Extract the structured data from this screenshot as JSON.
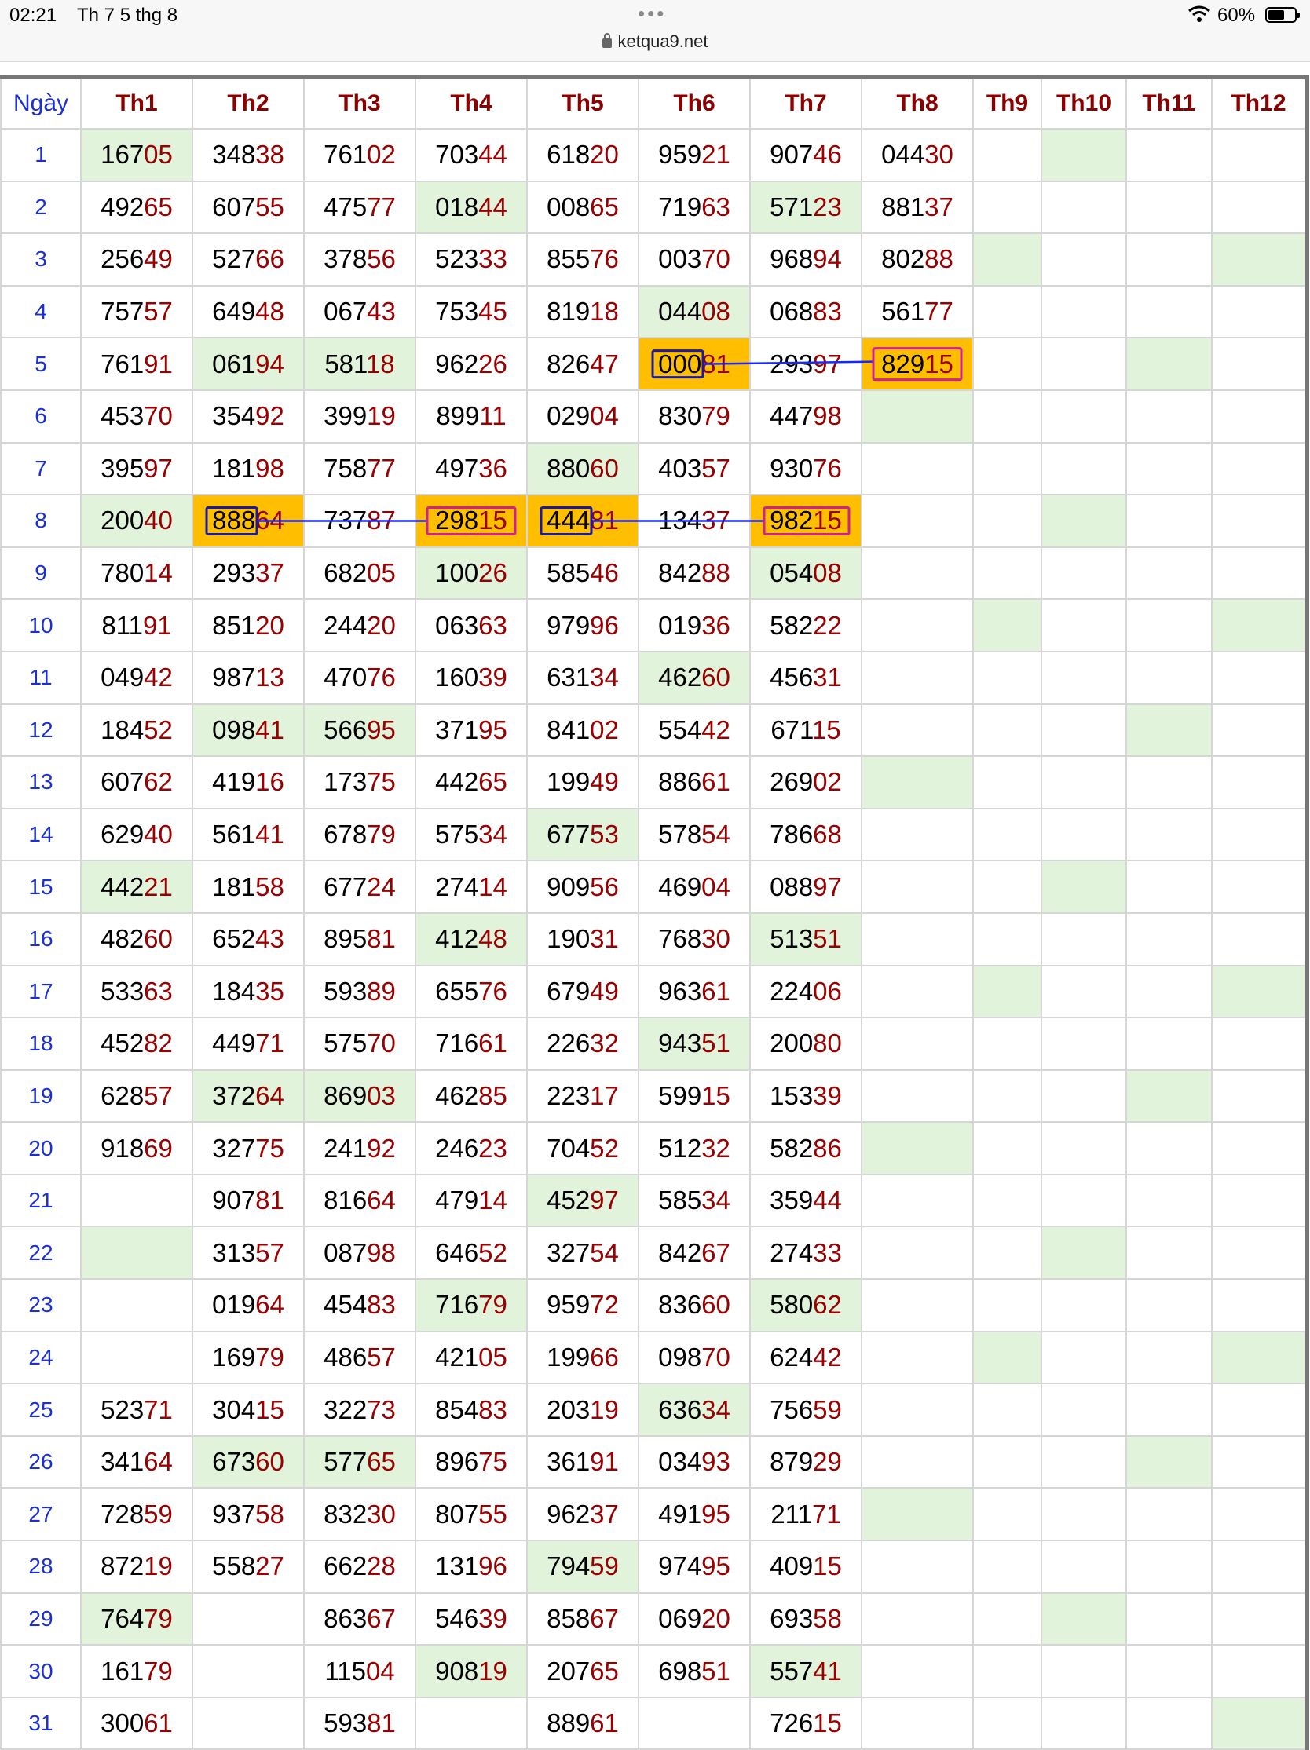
{
  "status": {
    "time": "02:21",
    "date": "Th 7 5 thg 8",
    "battery": "60%"
  },
  "browser": {
    "url": "ketqua9.net"
  },
  "table": {
    "headers": [
      "Ngày",
      "Th1",
      "Th2",
      "Th3",
      "Th4",
      "Th5",
      "Th6",
      "Th7",
      "Th8",
      "Th9",
      "Th10",
      "Th11",
      "Th12"
    ],
    "rows": [
      {
        "day": "1",
        "cells": [
          "16705",
          "34838",
          "76102",
          "70344",
          "61820",
          "95921",
          "90746",
          "04430",
          "",
          "",
          "",
          ""
        ]
      },
      {
        "day": "2",
        "cells": [
          "49265",
          "60755",
          "47577",
          "01844",
          "00865",
          "71963",
          "57123",
          "88137",
          "",
          "",
          "",
          ""
        ]
      },
      {
        "day": "3",
        "cells": [
          "25649",
          "52766",
          "37856",
          "52333",
          "85576",
          "00370",
          "96894",
          "80288",
          "",
          "",
          "",
          ""
        ]
      },
      {
        "day": "4",
        "cells": [
          "75757",
          "64948",
          "06743",
          "75345",
          "81918",
          "04408",
          "06883",
          "56177",
          "",
          "",
          "",
          ""
        ]
      },
      {
        "day": "5",
        "cells": [
          "76191",
          "06194",
          "58118",
          "96226",
          "82647",
          "00081",
          "29397",
          "82915",
          "",
          "",
          "",
          ""
        ]
      },
      {
        "day": "6",
        "cells": [
          "45370",
          "35492",
          "39919",
          "89911",
          "02904",
          "83079",
          "44798",
          "",
          "",
          "",
          "",
          ""
        ]
      },
      {
        "day": "7",
        "cells": [
          "39597",
          "18198",
          "75877",
          "49736",
          "88060",
          "40357",
          "93076",
          "",
          "",
          "",
          "",
          ""
        ]
      },
      {
        "day": "8",
        "cells": [
          "20040",
          "88864",
          "73787",
          "29815",
          "44481",
          "13437",
          "98215",
          "",
          "",
          "",
          "",
          ""
        ]
      },
      {
        "day": "9",
        "cells": [
          "78014",
          "29337",
          "68205",
          "10026",
          "58546",
          "84288",
          "05408",
          "",
          "",
          "",
          "",
          ""
        ]
      },
      {
        "day": "10",
        "cells": [
          "81191",
          "85120",
          "24420",
          "06363",
          "97996",
          "01936",
          "58222",
          "",
          "",
          "",
          "",
          ""
        ]
      },
      {
        "day": "11",
        "cells": [
          "04942",
          "98713",
          "47076",
          "16039",
          "63134",
          "46260",
          "45631",
          "",
          "",
          "",
          "",
          ""
        ]
      },
      {
        "day": "12",
        "cells": [
          "18452",
          "09841",
          "56695",
          "37195",
          "84102",
          "55442",
          "67115",
          "",
          "",
          "",
          "",
          ""
        ]
      },
      {
        "day": "13",
        "cells": [
          "60762",
          "41916",
          "17375",
          "44265",
          "19949",
          "88661",
          "26902",
          "",
          "",
          "",
          "",
          ""
        ]
      },
      {
        "day": "14",
        "cells": [
          "62940",
          "56141",
          "67879",
          "57534",
          "67753",
          "57854",
          "78668",
          "",
          "",
          "",
          "",
          ""
        ]
      },
      {
        "day": "15",
        "cells": [
          "44221",
          "18158",
          "67724",
          "27414",
          "90956",
          "46904",
          "08897",
          "",
          "",
          "",
          "",
          ""
        ]
      },
      {
        "day": "16",
        "cells": [
          "48260",
          "65243",
          "89581",
          "41248",
          "19031",
          "76830",
          "51351",
          "",
          "",
          "",
          "",
          ""
        ]
      },
      {
        "day": "17",
        "cells": [
          "53363",
          "18435",
          "59389",
          "65576",
          "67949",
          "96361",
          "22406",
          "",
          "",
          "",
          "",
          ""
        ]
      },
      {
        "day": "18",
        "cells": [
          "45282",
          "44971",
          "57570",
          "71661",
          "22632",
          "94351",
          "20080",
          "",
          "",
          "",
          "",
          ""
        ]
      },
      {
        "day": "19",
        "cells": [
          "62857",
          "37264",
          "86903",
          "46285",
          "22317",
          "59915",
          "15339",
          "",
          "",
          "",
          "",
          ""
        ]
      },
      {
        "day": "20",
        "cells": [
          "91869",
          "32775",
          "24192",
          "24623",
          "70452",
          "51232",
          "58286",
          "",
          "",
          "",
          "",
          ""
        ]
      },
      {
        "day": "21",
        "cells": [
          "",
          "90781",
          "81664",
          "47914",
          "45297",
          "58534",
          "35944",
          "",
          "",
          "",
          "",
          ""
        ]
      },
      {
        "day": "22",
        "cells": [
          "",
          "31357",
          "08798",
          "64652",
          "32754",
          "84267",
          "27433",
          "",
          "",
          "",
          "",
          ""
        ]
      },
      {
        "day": "23",
        "cells": [
          "",
          "01964",
          "45483",
          "71679",
          "95972",
          "83660",
          "58062",
          "",
          "",
          "",
          "",
          ""
        ]
      },
      {
        "day": "24",
        "cells": [
          "",
          "16979",
          "48657",
          "42105",
          "19966",
          "09870",
          "62442",
          "",
          "",
          "",
          "",
          ""
        ]
      },
      {
        "day": "25",
        "cells": [
          "52371",
          "30415",
          "32273",
          "85483",
          "20319",
          "63634",
          "75659",
          "",
          "",
          "",
          "",
          ""
        ]
      },
      {
        "day": "26",
        "cells": [
          "34164",
          "67360",
          "57765",
          "89675",
          "36191",
          "03493",
          "87929",
          "",
          "",
          "",
          "",
          ""
        ]
      },
      {
        "day": "27",
        "cells": [
          "72859",
          "93758",
          "83230",
          "80755",
          "96237",
          "49195",
          "21171",
          "",
          "",
          "",
          "",
          ""
        ]
      },
      {
        "day": "28",
        "cells": [
          "87219",
          "55827",
          "66228",
          "13196",
          "79459",
          "97495",
          "40915",
          "",
          "",
          "",
          "",
          ""
        ]
      },
      {
        "day": "29",
        "cells": [
          "76479",
          "",
          "86367",
          "54639",
          "85867",
          "06920",
          "69358",
          "",
          "",
          "",
          "",
          ""
        ]
      },
      {
        "day": "30",
        "cells": [
          "16179",
          "",
          "11504",
          "90819",
          "20765",
          "69851",
          "55741",
          "",
          "",
          "",
          "",
          ""
        ]
      },
      {
        "day": "31",
        "cells": [
          "30061",
          "",
          "59381",
          "",
          "88961",
          "",
          "72615",
          "",
          "",
          "",
          "",
          ""
        ]
      }
    ]
  },
  "colors": {
    "green_cell": "#e1f3db",
    "orange_cell": "#ffbf00",
    "header_red": "#8b0000",
    "day_blue": "#1a2fd8",
    "digit_red": "#9b0000"
  }
}
